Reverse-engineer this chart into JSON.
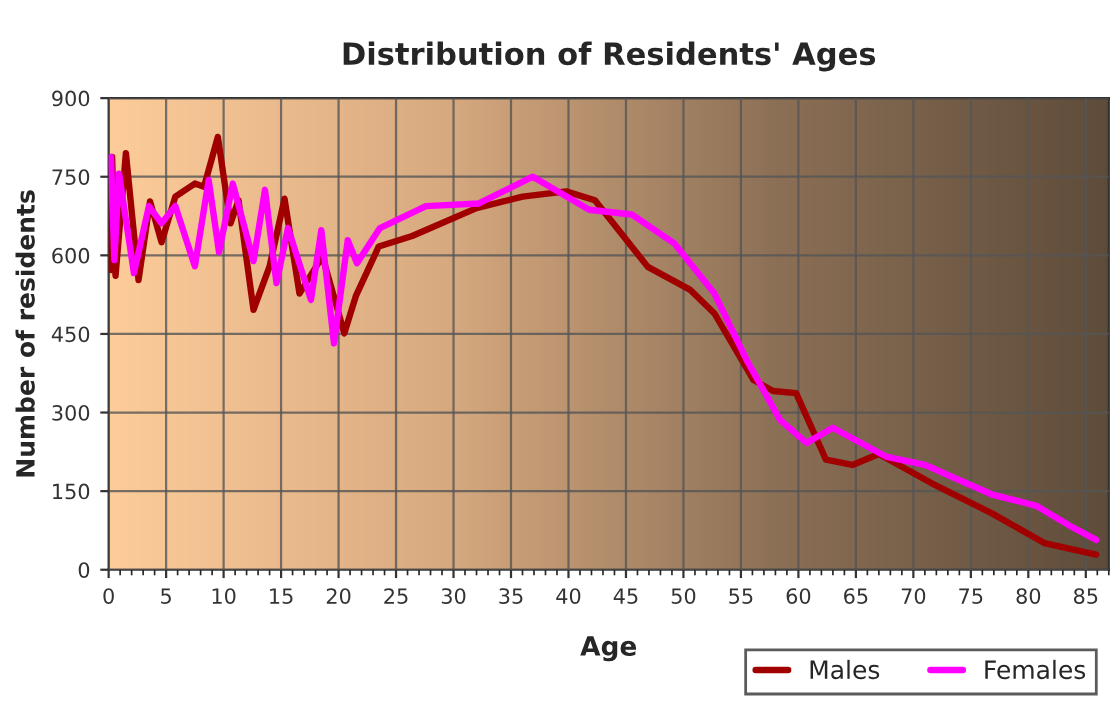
{
  "chart_data": {
    "type": "line",
    "title": "Distribution of Residents' Ages",
    "xlabel": "Age",
    "ylabel": "Number of residents",
    "xlim": [
      0,
      87
    ],
    "xticks": [
      0,
      5,
      10,
      15,
      20,
      25,
      30,
      35,
      40,
      45,
      50,
      55,
      60,
      65,
      70,
      75,
      80,
      85
    ],
    "ylim": [
      0,
      900
    ],
    "yticks": [
      0,
      150,
      300,
      450,
      600,
      750,
      900
    ],
    "grid": true,
    "legend": "bottom right",
    "marker": "none",
    "line_style": "solid",
    "series": [
      {
        "name": "Males",
        "color": "#a00000",
        "x": [
          0.2,
          0.3,
          0.6,
          1.5,
          2.6,
          3.6,
          4.6,
          5.8,
          7.5,
          8.3,
          9.5,
          10.6,
          11.3,
          12.6,
          14,
          15.3,
          16.6,
          18.6,
          20.5,
          21.5,
          23.5,
          26.4,
          32,
          36,
          39.8,
          42.3,
          46.9,
          50.6,
          52.7,
          56.1,
          57.8,
          59.8,
          62.4,
          64.7,
          67,
          71.6,
          76.8,
          81.4,
          85.9
        ],
        "values": [
          572,
          788,
          561,
          795,
          553,
          703,
          625,
          712,
          737,
          731,
          826,
          661,
          705,
          496,
          579,
          708,
          527,
          598,
          451,
          522,
          617,
          637,
          690,
          712,
          722,
          705,
          578,
          534,
          489,
          362,
          341,
          337,
          210,
          200,
          221,
          165,
          108,
          51,
          29
        ]
      },
      {
        "name": "Females",
        "color": "#ff00ff",
        "x": [
          0.2,
          0.5,
          0.9,
          2.2,
          3.5,
          4.6,
          5.8,
          7.5,
          8.7,
          9.6,
          10.8,
          12.6,
          13.6,
          14.6,
          15.6,
          17.6,
          18.5,
          19.6,
          20.8,
          21.6,
          23.6,
          27.6,
          32.2,
          36.9,
          41.8,
          45.5,
          49.2,
          52.7,
          55.5,
          58.4,
          60.7,
          63,
          67.6,
          71,
          76.8,
          80.7,
          83.6,
          85.9
        ],
        "values": [
          788,
          591,
          756,
          566,
          694,
          661,
          694,
          579,
          744,
          606,
          737,
          589,
          725,
          547,
          652,
          515,
          648,
          432,
          629,
          585,
          652,
          694,
          699,
          750,
          687,
          678,
          623,
          527,
          400,
          286,
          242,
          271,
          216,
          200,
          144,
          122,
          84,
          57
        ]
      }
    ]
  }
}
